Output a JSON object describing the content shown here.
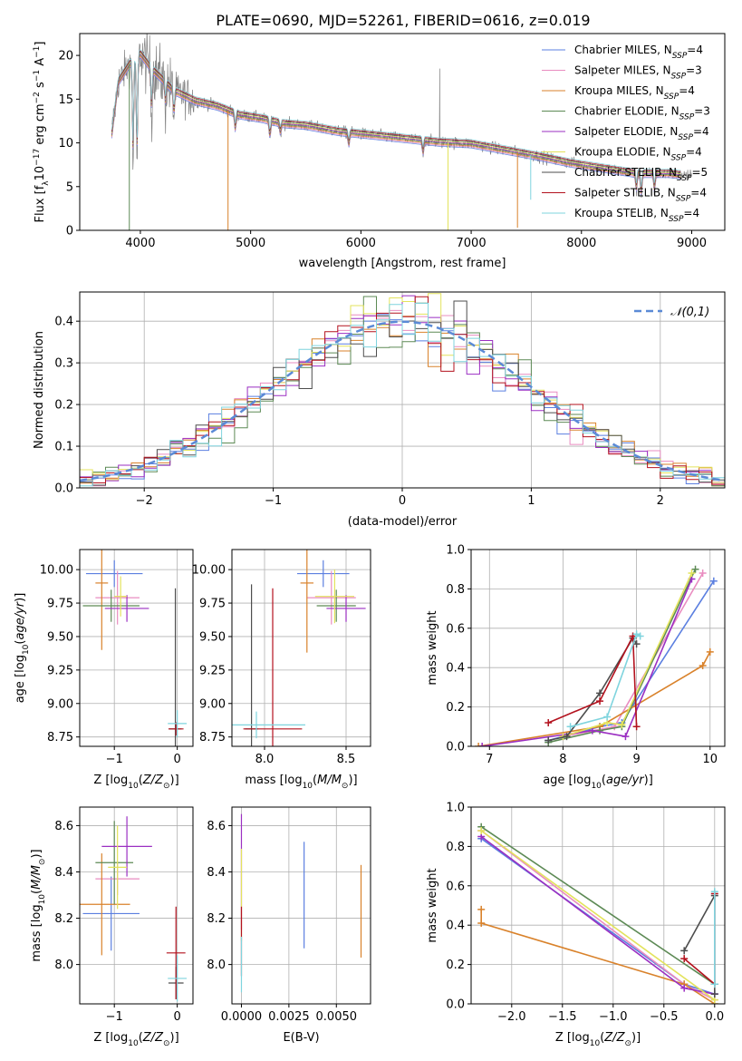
{
  "figure_title": "PLATE=0690, MJD=52261, FIBERID=0616, z=0.019",
  "model_colors": [
    "#5b7fe0",
    "#e98cc0",
    "#d9822b",
    "#5d8a55",
    "#9b2fc2",
    "#e3e35c",
    "#4d4d4d",
    "#b3121e",
    "#7fd4de"
  ],
  "chart_data": [
    {
      "id": "spectrum",
      "type": "line",
      "title": "PLATE=0690, MJD=52261, FIBERID=0616, z=0.019",
      "xlabel": "wavelength [Angstrom, rest frame]",
      "ylabel": "Flux [fλ10⁻¹⁷ erg cm⁻² s⁻¹ A⁻¹]",
      "xlim": [
        3450,
        9300
      ],
      "ylim": [
        0,
        22.5
      ],
      "xticks": [
        4000,
        5000,
        6000,
        7000,
        8000,
        9000
      ],
      "yticks": [
        0,
        5,
        10,
        15,
        20
      ],
      "legend_position": "top-right",
      "legend": [
        {
          "label": "Chabrier MILES, N",
          "sub": "SSP",
          "tail": "=4"
        },
        {
          "label": "Salpeter MILES, N",
          "sub": "SSP",
          "tail": "=3"
        },
        {
          "label": "Kroupa MILES, N",
          "sub": "SSP",
          "tail": "=4"
        },
        {
          "label": "Chabrier ELODIE, N",
          "sub": "SSP",
          "tail": "=3"
        },
        {
          "label": "Salpeter ELODIE, N",
          "sub": "SSP",
          "tail": "=4"
        },
        {
          "label": "Kroupa ELODIE, N",
          "sub": "SSP",
          "tail": "=4"
        },
        {
          "label": "Chabrier STELIB, N",
          "sub": "SSP",
          "tail": "=5"
        },
        {
          "label": "Salpeter STELIB, N",
          "sub": "SSP",
          "tail": "=4"
        },
        {
          "label": "Kroupa STELIB, N",
          "sub": "SSP",
          "tail": "=4"
        }
      ],
      "data_color": "#808080",
      "continuum": {
        "x": [
          3740,
          3800,
          3900,
          4000,
          4100,
          4200,
          4300,
          4500,
          4700,
          4900,
          5100,
          5300,
          5500,
          5800,
          6100,
          6400,
          6700,
          7000,
          7300,
          7600,
          7900,
          8200,
          8500,
          8800,
          9000
        ],
        "y": [
          11,
          17,
          19,
          20.2,
          18.5,
          17.3,
          16,
          14.8,
          14.2,
          13.2,
          12.8,
          12.2,
          12,
          11.3,
          10.9,
          10.5,
          10.1,
          9.9,
          9.2,
          8.5,
          7.7,
          7.1,
          6.5,
          6.5,
          6.2
        ]
      },
      "absorption_lines": [
        [
          3934,
          12
        ],
        [
          3969,
          13
        ],
        [
          4102,
          5
        ],
        [
          4227,
          2.5
        ],
        [
          4304,
          3
        ],
        [
          4861,
          2
        ],
        [
          5175,
          2
        ],
        [
          5270,
          1.2
        ],
        [
          5890,
          1.5
        ],
        [
          6563,
          1.5
        ],
        [
          8498,
          2
        ],
        [
          8542,
          2.5
        ],
        [
          8662,
          2
        ]
      ],
      "emission_lines": [
        [
          6715,
          18.5
        ]
      ],
      "model_spikes": [
        [
          3900,
          0,
          "#5d8a55"
        ],
        [
          4795,
          0,
          "#d9822b"
        ],
        [
          6790,
          0,
          "#e3e35c"
        ],
        [
          7420,
          0.3,
          "#d9822b"
        ],
        [
          7540,
          3.5,
          "#7fd4de"
        ]
      ]
    },
    {
      "id": "residual_hist",
      "type": "histogram",
      "xlabel": "(data-model)/error",
      "ylabel": "Normed distribution",
      "xlim": [
        -2.5,
        2.5
      ],
      "ylim": [
        0,
        0.47
      ],
      "xticks": [
        -2,
        -1,
        0,
        1,
        2
      ],
      "yticks": [
        0,
        0.1,
        0.2,
        0.3,
        0.4
      ],
      "bin_width": 0.1,
      "legend_position": "top-right",
      "legend": [
        {
          "label": "𝒩(0,1)"
        }
      ],
      "reference_curve": {
        "label": "𝒩(0,1)",
        "mean": 0,
        "sigma": 1,
        "color": "#5b8ad6",
        "style": "dashed"
      }
    },
    {
      "id": "age_vs_Z",
      "type": "errorbar",
      "xlabel": "Z [log₁₀(Z/Z⊙)]",
      "ylabel": "age  [log₁₀(age/yr)]",
      "xlim": [
        -1.55,
        0.25
      ],
      "ylim": [
        8.68,
        10.15
      ],
      "xticks": [
        -1,
        0
      ],
      "yticks": [
        8.75,
        9.0,
        9.25,
        9.5,
        9.75,
        10.0
      ],
      "points": [
        {
          "x": -1.0,
          "y": 9.97,
          "xerr": 0.45,
          "yerr": 0.1,
          "color": "#5b7fe0"
        },
        {
          "x": -0.95,
          "y": 9.79,
          "xerr": 0.35,
          "yerr": 0.2,
          "color": "#e98cc0"
        },
        {
          "x": -1.2,
          "y": 9.9,
          "xerr": 0.1,
          "yerr": 0.5,
          "color": "#d9822b"
        },
        {
          "x": -1.05,
          "y": 9.73,
          "xerr": 0.45,
          "yerr": 0.12,
          "color": "#5d8a55"
        },
        {
          "x": -0.8,
          "y": 9.71,
          "xerr": 0.35,
          "yerr": 0.1,
          "color": "#9b2fc2"
        },
        {
          "x": -0.9,
          "y": 9.8,
          "xerr": 0.1,
          "yerr": 0.15,
          "color": "#e3e35c"
        },
        {
          "x": -0.03,
          "y": 8.81,
          "xerr": 0.1,
          "yerr": 1.05,
          "color": "#4d4d4d"
        },
        {
          "x": -0.02,
          "y": 8.81,
          "xerr": 0.12,
          "yerr": 0.05,
          "color": "#b3121e"
        },
        {
          "x": 0.0,
          "y": 8.85,
          "xerr": 0.15,
          "yerr": 0.1,
          "color": "#7fd4de"
        }
      ]
    },
    {
      "id": "age_vs_mass",
      "type": "errorbar",
      "xlabel": "mass [log₁₀(M/M⊙)]",
      "ylabel": "",
      "xlim": [
        7.8,
        8.65
      ],
      "ylim": [
        8.68,
        10.15
      ],
      "xticks": [
        8.0,
        8.5
      ],
      "yticks": [
        8.75,
        9.0,
        9.25,
        9.5,
        9.75,
        10.0
      ],
      "points": [
        {
          "x": 8.36,
          "y": 9.97,
          "xerr": 0.16,
          "yerr": 0.1,
          "color": "#5b7fe0"
        },
        {
          "x": 8.41,
          "y": 9.79,
          "xerr": 0.15,
          "yerr": 0.2,
          "color": "#e98cc0"
        },
        {
          "x": 8.26,
          "y": 9.9,
          "xerr": 0.04,
          "yerr": 0.52,
          "color": "#d9822b"
        },
        {
          "x": 8.44,
          "y": 9.73,
          "xerr": 0.12,
          "yerr": 0.12,
          "color": "#5d8a55"
        },
        {
          "x": 8.5,
          "y": 9.71,
          "xerr": 0.12,
          "yerr": 0.1,
          "color": "#9b2fc2"
        },
        {
          "x": 8.43,
          "y": 9.8,
          "xerr": 0.12,
          "yerr": 0.2,
          "color": "#e3e35c"
        },
        {
          "x": 7.92,
          "y": 8.81,
          "xerr": 0.04,
          "yerr": 1.08,
          "color": "#4d4d4d"
        },
        {
          "x": 8.05,
          "y": 8.81,
          "xerr": 0.18,
          "yerr": 1.05,
          "color": "#b3121e"
        },
        {
          "x": 7.95,
          "y": 8.84,
          "xerr": 0.3,
          "yerr": 0.1,
          "color": "#7fd4de"
        }
      ]
    },
    {
      "id": "weight_vs_age",
      "type": "line",
      "xlabel": "age  [log₁₀(age/yr)]",
      "ylabel": "mass weight",
      "xlim": [
        6.75,
        10.2
      ],
      "ylim": [
        0,
        1.0
      ],
      "xticks": [
        7,
        8,
        9,
        10
      ],
      "yticks": [
        0,
        0.2,
        0.4,
        0.6,
        0.8,
        1.0
      ],
      "series": [
        {
          "color": "#5b7fe0",
          "x": [
            7.8,
            8.5,
            8.8,
            10.05
          ],
          "y": [
            0.03,
            0.1,
            0.12,
            0.84
          ]
        },
        {
          "color": "#e98cc0",
          "x": [
            8.0,
            8.7,
            9.9
          ],
          "y": [
            0.05,
            0.1,
            0.88
          ]
        },
        {
          "color": "#d9822b",
          "x": [
            6.85,
            8.5,
            9.9,
            10.0
          ],
          "y": [
            0.0,
            0.1,
            0.41,
            0.48
          ]
        },
        {
          "color": "#5d8a55",
          "x": [
            7.8,
            8.5,
            8.8,
            9.8
          ],
          "y": [
            0.02,
            0.08,
            0.1,
            0.9
          ]
        },
        {
          "color": "#9b2fc2",
          "x": [
            6.9,
            8.4,
            8.85,
            9.75
          ],
          "y": [
            0.0,
            0.08,
            0.05,
            0.85
          ]
        },
        {
          "color": "#e3e35c",
          "x": [
            8.0,
            8.6,
            8.8,
            9.75
          ],
          "y": [
            0.05,
            0.12,
            0.11,
            0.88
          ]
        },
        {
          "color": "#4d4d4d",
          "x": [
            7.8,
            8.05,
            8.5,
            8.95,
            9.0
          ],
          "y": [
            0.03,
            0.05,
            0.27,
            0.55,
            0.52
          ]
        },
        {
          "color": "#b3121e",
          "x": [
            7.8,
            8.5,
            8.95,
            9.0
          ],
          "y": [
            0.12,
            0.23,
            0.56,
            0.1
          ]
        },
        {
          "color": "#7fd4de",
          "x": [
            8.1,
            8.6,
            9.0,
            9.05
          ],
          "y": [
            0.1,
            0.15,
            0.57,
            0.56
          ]
        }
      ]
    },
    {
      "id": "mass_vs_Z",
      "type": "errorbar",
      "xlabel": "Z [log₁₀(Z/Z⊙)]",
      "ylabel": "mass [log₁₀(M/M⊙)]",
      "xlim": [
        -1.55,
        0.25
      ],
      "ylim": [
        7.83,
        8.68
      ],
      "xticks": [
        -1,
        0
      ],
      "yticks": [
        8.0,
        8.2,
        8.4,
        8.6
      ],
      "points": [
        {
          "x": -1.05,
          "y": 8.22,
          "xerr": 0.45,
          "yerr": 0.16,
          "color": "#5b7fe0"
        },
        {
          "x": -0.95,
          "y": 8.37,
          "xerr": 0.35,
          "yerr": 0.07,
          "color": "#e98cc0"
        },
        {
          "x": -1.2,
          "y": 8.26,
          "xerr": 0.45,
          "yerr": 0.22,
          "color": "#d9822b"
        },
        {
          "x": -1.0,
          "y": 8.44,
          "xerr": 0.3,
          "yerr": 0.18,
          "color": "#5d8a55"
        },
        {
          "x": -0.8,
          "y": 8.51,
          "xerr": 0.4,
          "yerr": 0.13,
          "color": "#9b2fc2"
        },
        {
          "x": -0.95,
          "y": 8.42,
          "xerr": 0.15,
          "yerr": 0.18,
          "color": "#e3e35c"
        },
        {
          "x": -0.02,
          "y": 7.92,
          "xerr": 0.12,
          "yerr": 0.07,
          "color": "#4d4d4d"
        },
        {
          "x": -0.02,
          "y": 8.05,
          "xerr": 0.15,
          "yerr": 0.2,
          "color": "#b3121e"
        },
        {
          "x": 0.0,
          "y": 7.94,
          "xerr": 0.15,
          "yerr": 0.1,
          "color": "#7fd4de"
        }
      ]
    },
    {
      "id": "mass_vs_ebv",
      "type": "errorbar",
      "xlabel": "E(B-V)",
      "ylabel": "",
      "xlim": [
        -0.0005,
        0.0068
      ],
      "ylim": [
        7.83,
        8.68
      ],
      "xticks": [
        0.0,
        0.0025,
        0.005
      ],
      "xticklabels": [
        "0.0000",
        "0.0025",
        "0.0050"
      ],
      "yticks": [
        8.0,
        8.2,
        8.4,
        8.6
      ],
      "points": [
        {
          "x": 0.0033,
          "y": 8.3,
          "xerr": 0,
          "yerr": 0.23,
          "color": "#5b7fe0"
        },
        {
          "x": 0.0063,
          "y": 8.23,
          "xerr": 0,
          "yerr": 0.2,
          "color": "#d9822b"
        },
        {
          "x": 0.0,
          "y": 8.4,
          "xerr": 0,
          "yerr": 0.25,
          "color": "#9b2fc2"
        },
        {
          "x": 0.0,
          "y": 8.3,
          "xerr": 0,
          "yerr": 0.2,
          "color": "#e3e35c"
        },
        {
          "x": 0.0,
          "y": 8.1,
          "xerr": 0,
          "yerr": 0.15,
          "color": "#b3121e"
        },
        {
          "x": 0.0,
          "y": 8.0,
          "xerr": 0,
          "yerr": 0.12,
          "color": "#7fd4de"
        }
      ]
    },
    {
      "id": "weight_vs_Z",
      "type": "line",
      "xlabel": "Z [log₁₀(Z/Z⊙)]",
      "ylabel": "mass weight",
      "xlim": [
        -2.4,
        0.1
      ],
      "ylim": [
        0,
        1.0
      ],
      "xticks": [
        -2.0,
        -1.5,
        -1.0,
        -0.5,
        0.0
      ],
      "yticks": [
        0,
        0.2,
        0.4,
        0.6,
        0.8,
        1.0
      ],
      "series": [
        {
          "color": "#5b7fe0",
          "x": [
            -2.3,
            -0.3,
            0.0
          ],
          "y": [
            0.84,
            0.1,
            0.05
          ]
        },
        {
          "color": "#e98cc0",
          "x": [
            -2.3,
            -0.3,
            0.0
          ],
          "y": [
            0.88,
            0.1,
            0.02
          ]
        },
        {
          "color": "#d9822b",
          "x": [
            -2.3,
            -2.3,
            -0.3,
            0.0
          ],
          "y": [
            0.48,
            0.41,
            0.1,
            0.0
          ]
        },
        {
          "color": "#5d8a55",
          "x": [
            -2.3,
            0.0
          ],
          "y": [
            0.9,
            0.1
          ]
        },
        {
          "color": "#9b2fc2",
          "x": [
            -2.3,
            -0.3,
            0.0
          ],
          "y": [
            0.85,
            0.08,
            0.05
          ]
        },
        {
          "color": "#e3e35c",
          "x": [
            -2.3,
            0.0
          ],
          "y": [
            0.88,
            0.02
          ]
        },
        {
          "color": "#4d4d4d",
          "x": [
            -0.3,
            0.0,
            0.0
          ],
          "y": [
            0.27,
            0.55,
            0.05
          ]
        },
        {
          "color": "#b3121e",
          "x": [
            -0.3,
            0.0,
            0.0
          ],
          "y": [
            0.23,
            0.1,
            0.56
          ]
        },
        {
          "color": "#7fd4de",
          "x": [
            0.0,
            0.0
          ],
          "y": [
            0.57,
            0.1
          ]
        }
      ]
    }
  ]
}
